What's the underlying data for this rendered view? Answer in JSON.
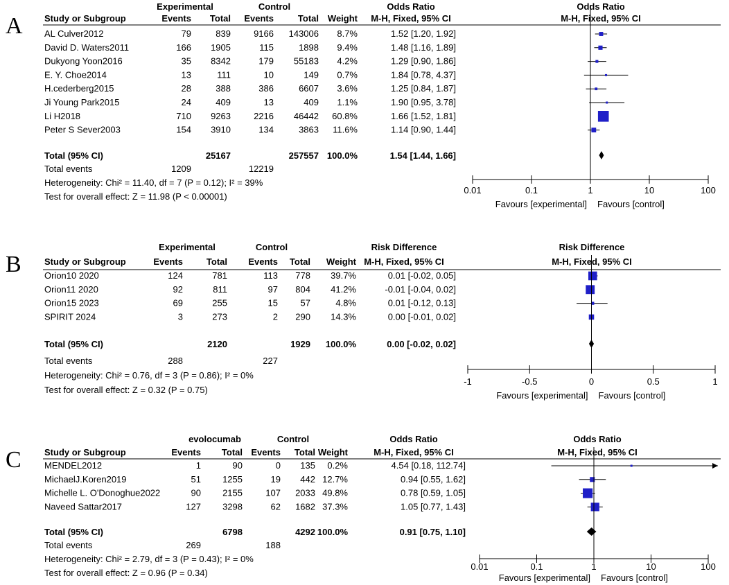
{
  "chart_data": [
    {
      "type": "forest",
      "panel_label": "A",
      "group1_label": "Experimental",
      "group2_label": "Control",
      "effect_header": "Odds Ratio",
      "effect_method": "M-H, Fixed, 95% CI",
      "columns": [
        "Study or Subgroup",
        "Events",
        "Total",
        "Events",
        "Total",
        "Weight",
        "M-H, Fixed, 95% CI"
      ],
      "studies": [
        {
          "name": "AL Culver2012",
          "e1": "79",
          "n1": "839",
          "e2": "9166",
          "n2": "143006",
          "weight": "8.7%",
          "ci_text": "1.52 [1.20, 1.92]",
          "est": 1.52,
          "lo": 1.2,
          "hi": 1.92,
          "w": 8.7
        },
        {
          "name": "David D. Waters2011",
          "e1": "166",
          "n1": "1905",
          "e2": "115",
          "n2": "1898",
          "weight": "9.4%",
          "ci_text": "1.48 [1.16, 1.89]",
          "est": 1.48,
          "lo": 1.16,
          "hi": 1.89,
          "w": 9.4
        },
        {
          "name": "Dukyong Yoon2016",
          "e1": "35",
          "n1": "8342",
          "e2": "179",
          "n2": "55183",
          "weight": "4.2%",
          "ci_text": "1.29 [0.90, 1.86]",
          "est": 1.29,
          "lo": 0.9,
          "hi": 1.86,
          "w": 4.2
        },
        {
          "name": "E. Y. Choe2014",
          "e1": "13",
          "n1": "111",
          "e2": "10",
          "n2": "149",
          "weight": "0.7%",
          "ci_text": "1.84 [0.78, 4.37]",
          "est": 1.84,
          "lo": 0.78,
          "hi": 4.37,
          "w": 0.7
        },
        {
          "name": "H.cederberg2015",
          "e1": "28",
          "n1": "388",
          "e2": "386",
          "n2": "6607",
          "weight": "3.6%",
          "ci_text": "1.25 [0.84, 1.87]",
          "est": 1.25,
          "lo": 0.84,
          "hi": 1.87,
          "w": 3.6
        },
        {
          "name": "Ji Young Park2015",
          "e1": "24",
          "n1": "409",
          "e2": "13",
          "n2": "409",
          "weight": "1.1%",
          "ci_text": "1.90 [0.95, 3.78]",
          "est": 1.9,
          "lo": 0.95,
          "hi": 3.78,
          "w": 1.1
        },
        {
          "name": "Li H2018",
          "e1": "710",
          "n1": "9263",
          "e2": "2216",
          "n2": "46442",
          "weight": "60.8%",
          "ci_text": "1.66 [1.52, 1.81]",
          "est": 1.66,
          "lo": 1.52,
          "hi": 1.81,
          "w": 60.8
        },
        {
          "name": "Peter S Sever2003",
          "e1": "154",
          "n1": "3910",
          "e2": "134",
          "n2": "3863",
          "weight": "11.6%",
          "ci_text": "1.14 [0.90, 1.44]",
          "est": 1.14,
          "lo": 0.9,
          "hi": 1.44,
          "w": 11.6
        }
      ],
      "total": {
        "label": "Total (95% CI)",
        "n1": "25167",
        "n2": "257557",
        "weight": "100.0%",
        "ci_text": "1.54 [1.44, 1.66]",
        "est": 1.54,
        "lo": 1.44,
        "hi": 1.66
      },
      "total_events": {
        "label": "Total events",
        "e1": "1209",
        "e2": "12219"
      },
      "heterogeneity": "Heterogeneity: Chi² = 11.40, df = 7 (P = 0.12); I² = 39%",
      "overall_effect": "Test for overall effect: Z = 11.98 (P < 0.00001)",
      "scale": "log",
      "axis_min": 0.01,
      "axis_max": 100,
      "null_value": 1,
      "ticks": [
        0.01,
        0.1,
        1,
        10,
        100
      ],
      "tick_labels": [
        "0.01",
        "0.1",
        "1",
        "10",
        "100"
      ],
      "favours_left": "Favours [experimental]",
      "favours_right": "Favours [control]"
    },
    {
      "type": "forest",
      "panel_label": "B",
      "group1_label": "Experimental",
      "group2_label": "Control",
      "effect_header": "Risk Difference",
      "effect_method": "M-H, Fixed, 95% CI",
      "columns": [
        "Study or Subgroup",
        "Events",
        "Total",
        "Events",
        "Total",
        "Weight",
        "M-H, Fixed, 95% CI"
      ],
      "studies": [
        {
          "name": "Orion10 2020",
          "e1": "124",
          "n1": "781",
          "e2": "113",
          "n2": "778",
          "weight": "39.7%",
          "ci_text": "0.01 [-0.02, 0.05]",
          "est": 0.01,
          "lo": -0.02,
          "hi": 0.05,
          "w": 39.7
        },
        {
          "name": "Orion11 2020",
          "e1": "92",
          "n1": "811",
          "e2": "97",
          "n2": "804",
          "weight": "41.2%",
          "ci_text": "-0.01 [-0.04, 0.02]",
          "est": -0.01,
          "lo": -0.04,
          "hi": 0.02,
          "w": 41.2
        },
        {
          "name": "Orion15 2023",
          "e1": "69",
          "n1": "255",
          "e2": "15",
          "n2": "57",
          "weight": "4.8%",
          "ci_text": "0.01 [-0.12, 0.13]",
          "est": 0.01,
          "lo": -0.12,
          "hi": 0.13,
          "w": 4.8
        },
        {
          "name": "SPIRIT 2024",
          "e1": "3",
          "n1": "273",
          "e2": "2",
          "n2": "290",
          "weight": "14.3%",
          "ci_text": "0.00 [-0.01, 0.02]",
          "est": 0.0,
          "lo": -0.01,
          "hi": 0.02,
          "w": 14.3
        }
      ],
      "total": {
        "label": "Total (95% CI)",
        "n1": "2120",
        "n2": "1929",
        "weight": "100.0%",
        "ci_text": "0.00 [-0.02, 0.02]",
        "est": 0.0,
        "lo": -0.02,
        "hi": 0.02
      },
      "total_events": {
        "label": "Total events",
        "e1": "288",
        "e2": "227"
      },
      "heterogeneity": "Heterogeneity: Chi² = 0.76, df = 3 (P = 0.86); I² = 0%",
      "overall_effect": "Test for overall effect: Z = 0.32 (P = 0.75)",
      "scale": "linear",
      "axis_min": -1,
      "axis_max": 1,
      "null_value": 0,
      "ticks": [
        -1,
        -0.5,
        0,
        0.5,
        1
      ],
      "tick_labels": [
        "-1",
        "-0.5",
        "0",
        "0.5",
        "1"
      ],
      "favours_left": "Favours [experimental]",
      "favours_right": "Favours [control]"
    },
    {
      "type": "forest",
      "panel_label": "C",
      "group1_label": "evolocumab",
      "group2_label": "Control",
      "effect_header": "Odds Ratio",
      "effect_method": "M-H, Fixed, 95% CI",
      "columns": [
        "Study or Subgroup",
        "Events",
        "Total",
        "Events",
        "Total",
        "Weight",
        "M-H, Fixed, 95% CI"
      ],
      "studies": [
        {
          "name": "MENDEL2012",
          "e1": "1",
          "n1": "90",
          "e2": "0",
          "n2": "135",
          "weight": "0.2%",
          "ci_text": "4.54 [0.18, 112.74]",
          "est": 4.54,
          "lo": 0.18,
          "hi": 112.74,
          "w": 0.2
        },
        {
          "name": "MichaelJ.Koren2019",
          "e1": "51",
          "n1": "1255",
          "e2": "19",
          "n2": "442",
          "weight": "12.7%",
          "ci_text": "0.94 [0.55, 1.62]",
          "est": 0.94,
          "lo": 0.55,
          "hi": 1.62,
          "w": 12.7
        },
        {
          "name": "Michelle L. O'Donoghue2022",
          "e1": "90",
          "n1": "2155",
          "e2": "107",
          "n2": "2033",
          "weight": "49.8%",
          "ci_text": "0.78 [0.59, 1.05]",
          "est": 0.78,
          "lo": 0.59,
          "hi": 1.05,
          "w": 49.8
        },
        {
          "name": "Naveed Sattar2017",
          "e1": "127",
          "n1": "3298",
          "e2": "62",
          "n2": "1682",
          "weight": "37.3%",
          "ci_text": "1.05 [0.77, 1.43]",
          "est": 1.05,
          "lo": 0.77,
          "hi": 1.43,
          "w": 37.3
        }
      ],
      "total": {
        "label": "Total (95% CI)",
        "n1": "6798",
        "n2": "4292",
        "weight": "100.0%",
        "ci_text": "0.91 [0.75, 1.10]",
        "est": 0.91,
        "lo": 0.75,
        "hi": 1.1
      },
      "total_events": {
        "label": "Total events",
        "e1": "269",
        "e2": "188"
      },
      "heterogeneity": "Heterogeneity: Chi² = 2.79, df = 3 (P = 0.43); I² = 0%",
      "overall_effect": "Test for overall effect: Z = 0.96 (P = 0.34)",
      "scale": "log",
      "axis_min": 0.01,
      "axis_max": 100,
      "null_value": 1,
      "ticks": [
        0.01,
        0.1,
        1,
        10,
        100
      ],
      "tick_labels": [
        "0.01",
        "0.1",
        "1",
        "10",
        "100"
      ],
      "favours_left": "Favours [experimental]",
      "favours_right": "Favours [control]"
    }
  ],
  "colors": {
    "marker": "#1f1fc8",
    "text": "#000000",
    "line": "#000000"
  }
}
